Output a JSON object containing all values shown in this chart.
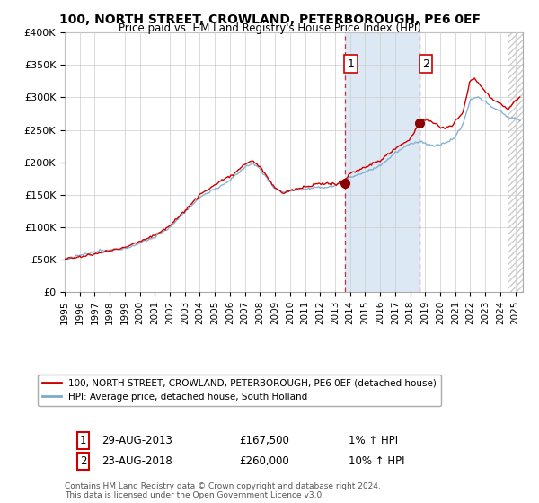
{
  "title": "100, NORTH STREET, CROWLAND, PETERBOROUGH, PE6 0EF",
  "subtitle": "Price paid vs. HM Land Registry's House Price Index (HPI)",
  "ylim": [
    0,
    400000
  ],
  "xlim_start": 1995.0,
  "xlim_end": 2025.5,
  "legend_line1": "100, NORTH STREET, CROWLAND, PETERBOROUGH, PE6 0EF (detached house)",
  "legend_line2": "HPI: Average price, detached house, South Holland",
  "footnote": "Contains HM Land Registry data © Crown copyright and database right 2024.\nThis data is licensed under the Open Government Licence v3.0.",
  "sale1_x": 2013.66,
  "sale1_y": 167500,
  "sale2_x": 2018.64,
  "sale2_y": 260000,
  "shade_x1": 2013.66,
  "shade_x2": 2018.64,
  "hatch_x": 2024.5,
  "line_color_red": "#cc0000",
  "line_color_blue": "#7aabcc",
  "shade_color": "#dde8f5",
  "hatch_color": "#dddddd",
  "background_color": "#ffffff",
  "grid_color": "#cccccc"
}
